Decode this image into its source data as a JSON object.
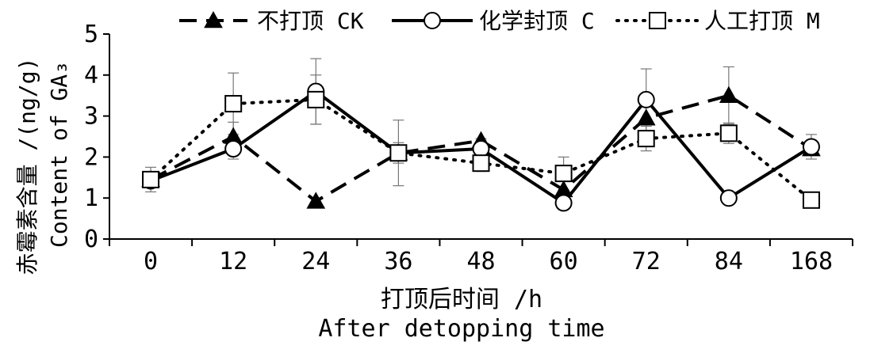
{
  "chart_data": {
    "type": "line",
    "categories": [
      "0",
      "12",
      "24",
      "36",
      "48",
      "60",
      "72",
      "84",
      "168"
    ],
    "ylim": [
      0,
      5
    ],
    "yticks": [
      "0",
      "1",
      "2",
      "3",
      "4",
      "5"
    ],
    "xlabel_cn": "打顶后时间 /h",
    "xlabel_en": "After detopping time",
    "ylabel_cn": "赤霉素含量 /(ng/g)",
    "ylabel_en": "Content of GA₃",
    "legend_position": "top",
    "grid": false,
    "series": [
      {
        "name": "不打顶 CK",
        "style": "dashed",
        "marker": "triangle-filled",
        "values": [
          1.45,
          2.5,
          0.92,
          2.1,
          2.4,
          1.2,
          2.95,
          3.5,
          2.2
        ],
        "err": [
          0,
          0.35,
          0,
          0,
          0,
          0,
          0,
          0.7,
          0
        ]
      },
      {
        "name": "化学封顶 C",
        "style": "solid",
        "marker": "circle-open",
        "values": [
          1.42,
          2.2,
          3.6,
          2.1,
          2.2,
          0.88,
          3.4,
          1.0,
          2.25
        ],
        "err": [
          0,
          0.25,
          0.8,
          0.8,
          0.25,
          0,
          0.75,
          0,
          0.3
        ]
      },
      {
        "name": "人工打顶 M",
        "style": "dotted",
        "marker": "square-open",
        "values": [
          1.45,
          3.3,
          3.4,
          2.1,
          1.85,
          1.6,
          2.45,
          2.58,
          0.95
        ],
        "err": [
          0.3,
          0.75,
          0.6,
          0.25,
          0.2,
          0.4,
          0.3,
          0.25,
          0
        ]
      }
    ]
  }
}
